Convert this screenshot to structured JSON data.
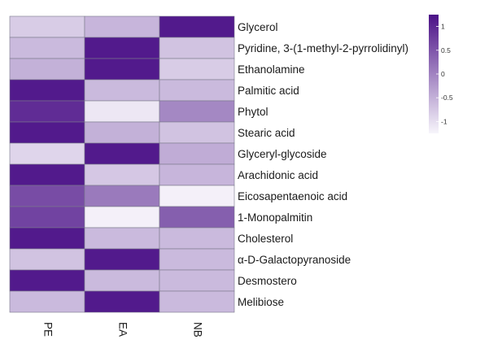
{
  "chart_data": {
    "type": "heatmap",
    "columns": [
      "PE",
      "EA",
      "NB"
    ],
    "rows": [
      "Glycerol",
      "Pyridine, 3-(1-methyl-2-pyrrolidinyl)",
      "Ethanolamine",
      "Palmitic acid",
      "Phytol",
      "Stearic acid",
      " Glyceryl-glycoside",
      "Arachidonic acid",
      " Eicosapentaenoic acid",
      "1-Monopalmitin",
      "Cholesterol",
      "α-D-Galactopyranoside",
      "Desmostero",
      "Melibiose"
    ],
    "values": [
      [
        -0.8,
        -0.55,
        1.15
      ],
      [
        -0.6,
        1.15,
        -0.7
      ],
      [
        -0.5,
        1.15,
        -0.8
      ],
      [
        1.15,
        -0.6,
        -0.6
      ],
      [
        0.95,
        -1.1,
        -0.05
      ],
      [
        1.15,
        -0.5,
        -0.7
      ],
      [
        -0.9,
        1.15,
        -0.45
      ],
      [
        1.15,
        -0.75,
        -0.55
      ],
      [
        0.6,
        0.1,
        -1.2
      ],
      [
        0.7,
        -1.2,
        0.4
      ],
      [
        1.15,
        -0.6,
        -0.6
      ],
      [
        -0.7,
        1.15,
        -0.6
      ],
      [
        1.15,
        -0.6,
        -0.6
      ],
      [
        -0.6,
        1.15,
        -0.6
      ]
    ],
    "legend": {
      "ticks": [
        1,
        0.5,
        0,
        -0.5,
        -1
      ],
      "tick_labels": [
        "1",
        "0.5",
        "0",
        "-0.5",
        "-1"
      ],
      "range": [
        -1.25,
        1.25
      ],
      "color_low": "#f7f5fb",
      "color_high": "#4b1187"
    },
    "grid_color": "#7a7a8a"
  }
}
